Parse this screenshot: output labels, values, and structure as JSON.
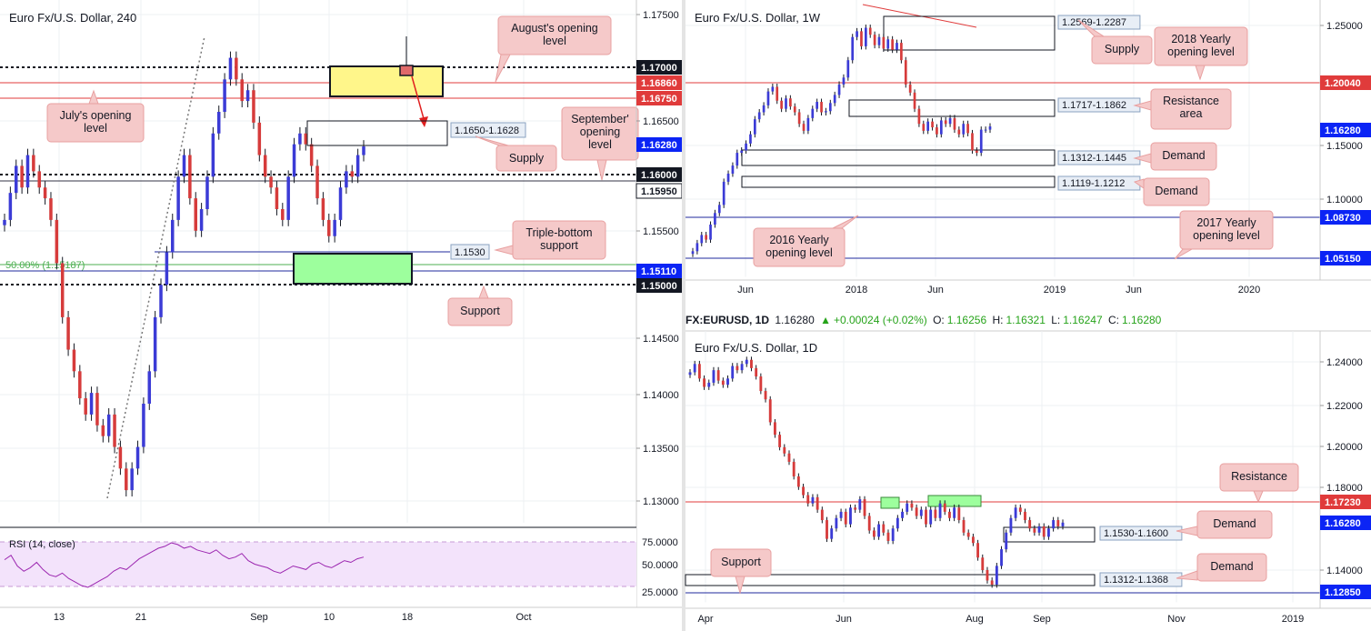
{
  "ticker_bar": {
    "symbol": "FX:EURUSD, 1D",
    "price": "1.16280",
    "change": "+0.00024 (+0.02%)",
    "o_label": "O:",
    "o_value": "1.16256",
    "h_label": "H:",
    "h_value": "1.16321",
    "l_label": "L:",
    "l_value": "1.16247",
    "c_label": "C:",
    "c_value": "1.16280"
  },
  "colors": {
    "price_tag": "#0b24f5",
    "resistance_line": "#e03b3b",
    "dotted_level": "#131722",
    "support_line": "#1f2a9e",
    "callout_fill": "#f5c9c9",
    "callout_stroke": "#e8a0a0",
    "supply_box": "#fff68a",
    "demand_box": "#9dff9d",
    "fib_line": "#4caf50",
    "rsi_fill": "#f3e3fb",
    "rsi_line": "#9c27b0",
    "bull": "#3b3bd6",
    "bear": "#d63b3b"
  },
  "chart_data": [
    {
      "id": "h4",
      "type": "candlestick",
      "title": "Euro Fx/U.S. Dollar, 240",
      "ylim": [
        1.128,
        1.1765
      ],
      "ticks_y": [
        "1.17500",
        "1.16500",
        "1.15500",
        "1.14500",
        "1.14000",
        "1.13500",
        "1.13000"
      ],
      "ticks_x": [
        "13",
        "21",
        "Sep",
        "10",
        "18",
        "Oct"
      ],
      "levels": [
        {
          "value": 1.17,
          "label": "1.17000",
          "style": "dotted-black",
          "tag": "black"
        },
        {
          "value": 1.1686,
          "label": "1.16860",
          "style": "solid-red",
          "tag": "red"
        },
        {
          "value": 1.1675,
          "label": "1.16750",
          "style": "solid-red",
          "tag": "red"
        },
        {
          "value": 1.1628,
          "label": "1.16280",
          "style": "none",
          "tag": "blue"
        },
        {
          "value": 1.16,
          "label": "1.16000",
          "style": "dotted-black",
          "tag": "black"
        },
        {
          "value": 1.1595,
          "label": "1.15950",
          "style": "solid-dark",
          "tag": "white"
        },
        {
          "value": 1.1511,
          "label": "1.15110",
          "style": "solid-navy",
          "tag": "blue"
        },
        {
          "value": 1.15,
          "label": "1.15000",
          "style": "dotted-black",
          "tag": "black"
        }
      ],
      "fib": {
        "label": "50.00% (1.15187)",
        "value": 1.15187
      },
      "boxes": [
        {
          "label": "1.1650-1.1628",
          "top": 1.165,
          "bottom": 1.1628,
          "kind": "supply"
        },
        {
          "label": "1.1530",
          "value": 1.153,
          "kind": "line-label"
        }
      ],
      "callouts": [
        {
          "text": "August's opening level",
          "lines": [
            "August's opening",
            "level"
          ]
        },
        {
          "text": "July's opening level",
          "lines": [
            "July's opening",
            "level"
          ]
        },
        {
          "text": "September' opening level",
          "lines": [
            "September'",
            "opening",
            "level"
          ]
        },
        {
          "text": "Supply",
          "lines": [
            "Supply"
          ]
        },
        {
          "text": "Triple-bottom support",
          "lines": [
            "Triple-bottom",
            "support"
          ]
        },
        {
          "text": "Support",
          "lines": [
            "Support"
          ]
        }
      ],
      "rsi": {
        "title": "RSI (14, close)",
        "ticks": [
          "75.0000",
          "50.0000",
          "25.0000"
        ],
        "ylim": [
          20,
          80
        ],
        "values": [
          55,
          60,
          48,
          42,
          46,
          52,
          44,
          38,
          36,
          40,
          34,
          30,
          26,
          24,
          28,
          32,
          36,
          42,
          46,
          44,
          50,
          56,
          60,
          64,
          68,
          70,
          74,
          72,
          68,
          70,
          66,
          64,
          62,
          66,
          60,
          56,
          58,
          62,
          54,
          50,
          48,
          46,
          42,
          40,
          44,
          48,
          46,
          44,
          50,
          52,
          48,
          46,
          50,
          54,
          52,
          56,
          58
        ]
      },
      "closes": [
        1.156,
        1.1585,
        1.161,
        1.159,
        1.162,
        1.1605,
        1.159,
        1.158,
        1.156,
        1.152,
        1.147,
        1.144,
        1.142,
        1.1395,
        1.138,
        1.14,
        1.137,
        1.136,
        1.138,
        1.135,
        1.133,
        1.131,
        1.133,
        1.135,
        1.139,
        1.142,
        1.147,
        1.15,
        1.153,
        1.156,
        1.16,
        1.162,
        1.158,
        1.155,
        1.157,
        1.16,
        1.164,
        1.166,
        1.169,
        1.171,
        1.169,
        1.167,
        1.168,
        1.165,
        1.162,
        1.16,
        1.159,
        1.157,
        1.156,
        1.16,
        1.163,
        1.164,
        1.163,
        1.161,
        1.158,
        1.156,
        1.1545,
        1.156,
        1.159,
        1.1605,
        1.16,
        1.162,
        1.1628
      ]
    },
    {
      "id": "w1",
      "type": "candlestick",
      "title": "Euro Fx/U.S. Dollar, 1W",
      "ylim": [
        1.033,
        1.262
      ],
      "ticks_y": [
        "1.25000",
        "1.15000",
        "1.10000"
      ],
      "ticks_x": [
        "Jun",
        "2018",
        "Jun",
        "2019",
        "Jun",
        "2020"
      ],
      "levels": [
        {
          "value": 1.2004,
          "label": "1.20040",
          "style": "solid-red",
          "tag": "red"
        },
        {
          "value": 1.1628,
          "label": "1.16280",
          "style": "none",
          "tag": "blue"
        },
        {
          "value": 1.0873,
          "label": "1.08730",
          "style": "solid-navy",
          "tag": "blue"
        },
        {
          "value": 1.0515,
          "label": "1.05150",
          "style": "solid-navy",
          "tag": "blue"
        }
      ],
      "boxes": [
        {
          "label": "1.2569-1.2287",
          "top": 1.2569,
          "bottom": 1.2287
        },
        {
          "label": "1.1717-1.1862",
          "top": 1.1862,
          "bottom": 1.1717
        },
        {
          "label": "1.1312-1.1445",
          "top": 1.1445,
          "bottom": 1.1312
        },
        {
          "label": "1.1119-1.1212",
          "top": 1.1212,
          "bottom": 1.1119
        }
      ],
      "callouts": [
        {
          "text": "Supply",
          "lines": [
            "Supply"
          ]
        },
        {
          "text": "2018 Yearly opening level",
          "lines": [
            "2018 Yearly",
            "opening level"
          ]
        },
        {
          "text": "Resistance area",
          "lines": [
            "Resistance",
            "area"
          ]
        },
        {
          "text": "Demand",
          "lines": [
            "Demand"
          ]
        },
        {
          "text": "Demand",
          "lines": [
            "Demand"
          ]
        },
        {
          "text": "2016 Yearly opening level",
          "lines": [
            "2016 Yearly",
            "opening level"
          ]
        },
        {
          "text": "2017 Yearly opening level",
          "lines": [
            "2017 Yearly",
            "opening level"
          ]
        }
      ],
      "closes": [
        1.055,
        1.062,
        1.069,
        1.065,
        1.078,
        1.088,
        1.095,
        1.115,
        1.122,
        1.129,
        1.14,
        1.142,
        1.148,
        1.156,
        1.169,
        1.175,
        1.181,
        1.193,
        1.197,
        1.185,
        1.178,
        1.187,
        1.18,
        1.175,
        1.165,
        1.159,
        1.17,
        1.178,
        1.184,
        1.175,
        1.176,
        1.183,
        1.19,
        1.199,
        1.205,
        1.22,
        1.24,
        1.245,
        1.232,
        1.248,
        1.242,
        1.233,
        1.24,
        1.23,
        1.238,
        1.229,
        1.235,
        1.22,
        1.199,
        1.192,
        1.178,
        1.165,
        1.159,
        1.167,
        1.162,
        1.156,
        1.168,
        1.165,
        1.17,
        1.16,
        1.156,
        1.165,
        1.157,
        1.142,
        1.14,
        1.16,
        1.16,
        1.1628
      ]
    },
    {
      "id": "d1",
      "type": "candlestick",
      "title": "Euro Fx/U.S. Dollar, 1D",
      "ylim": [
        1.1245,
        1.2485
      ],
      "ticks_y": [
        "1.24000",
        "1.22000",
        "1.20000",
        "1.18000",
        "1.14000"
      ],
      "ticks_x": [
        "Apr",
        "Jun",
        "Aug",
        "Sep",
        "Nov",
        "2019"
      ],
      "levels": [
        {
          "value": 1.1723,
          "label": "1.17230",
          "style": "solid-red",
          "tag": "red"
        },
        {
          "value": 1.1628,
          "label": "1.16280",
          "style": "none",
          "tag": "blue"
        },
        {
          "value": 1.1285,
          "label": "1.12850",
          "style": "solid-navy",
          "tag": "blue"
        }
      ],
      "boxes": [
        {
          "label": "1.1530-1.1600",
          "top": 1.16,
          "bottom": 1.153
        },
        {
          "label": "1.1312-1.1368",
          "top": 1.1368,
          "bottom": 1.1312
        }
      ],
      "callouts": [
        {
          "text": "Resistance",
          "lines": [
            "Resistance"
          ]
        },
        {
          "text": "Demand",
          "lines": [
            "Demand"
          ]
        },
        {
          "text": "Support",
          "lines": [
            "Support"
          ]
        },
        {
          "text": "Demand",
          "lines": [
            "Demand"
          ]
        }
      ],
      "closes": [
        1.235,
        1.239,
        1.232,
        1.228,
        1.23,
        1.236,
        1.231,
        1.229,
        1.232,
        1.238,
        1.236,
        1.239,
        1.241,
        1.237,
        1.233,
        1.226,
        1.222,
        1.211,
        1.205,
        1.199,
        1.196,
        1.192,
        1.185,
        1.18,
        1.176,
        1.172,
        1.175,
        1.169,
        1.164,
        1.155,
        1.16,
        1.165,
        1.168,
        1.162,
        1.17,
        1.169,
        1.174,
        1.166,
        1.159,
        1.156,
        1.162,
        1.158,
        1.154,
        1.16,
        1.165,
        1.168,
        1.172,
        1.17,
        1.166,
        1.169,
        1.162,
        1.169,
        1.165,
        1.172,
        1.168,
        1.165,
        1.17,
        1.164,
        1.158,
        1.156,
        1.153,
        1.146,
        1.14,
        1.135,
        1.133,
        1.142,
        1.15,
        1.158,
        1.165,
        1.17,
        1.168,
        1.164,
        1.16,
        1.158,
        1.161,
        1.156,
        1.16,
        1.164,
        1.161,
        1.1628
      ]
    }
  ]
}
